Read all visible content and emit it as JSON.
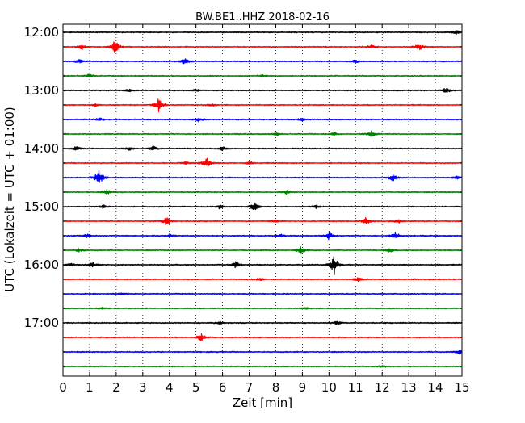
{
  "chart_data": {
    "type": "line",
    "title": "BW.BE1..HHZ 2018-02-16",
    "xlabel": "Zeit  [min]",
    "ylabel": "UTC (Lokalzeit = UTC + 01:00)",
    "xlim": [
      0,
      15
    ],
    "x_ticks": [
      0,
      1,
      2,
      3,
      4,
      5,
      6,
      7,
      8,
      9,
      10,
      11,
      12,
      13,
      14,
      15
    ],
    "x_tick_labels": [
      "0",
      "1",
      "2",
      "3",
      "4",
      "5",
      "6",
      "7",
      "8",
      "9",
      "10",
      "11",
      "12",
      "13",
      "14",
      "15"
    ],
    "grid": "vertical dotted lines at each minute",
    "y_tick_labels": [
      "12:00",
      "13:00",
      "14:00",
      "15:00",
      "16:00",
      "17:00"
    ],
    "trace_color_cycle": [
      "#000000",
      "#ff0000",
      "#0000ff",
      "#008000"
    ],
    "traces": [
      {
        "start": "12:00",
        "events": [
          [
            14.8,
            1.0
          ]
        ]
      },
      {
        "start": "12:15",
        "events": [
          [
            1.95,
            4.5
          ],
          [
            0.7,
            1.5
          ],
          [
            13.4,
            1.8
          ],
          [
            11.6,
            1.0
          ]
        ]
      },
      {
        "start": "12:30",
        "events": [
          [
            4.6,
            2.0
          ],
          [
            0.6,
            1.0
          ],
          [
            11.0,
            0.8
          ]
        ]
      },
      {
        "start": "12:45",
        "events": [
          [
            1.0,
            1.2
          ],
          [
            7.5,
            0.7
          ]
        ]
      },
      {
        "start": "13:00",
        "events": [
          [
            14.4,
            1.5
          ],
          [
            5.0,
            0.8
          ],
          [
            2.5,
            0.8
          ]
        ]
      },
      {
        "start": "13:15",
        "events": [
          [
            3.6,
            3.5
          ],
          [
            5.6,
            0.8
          ],
          [
            1.2,
            0.8
          ]
        ]
      },
      {
        "start": "13:30",
        "events": [
          [
            1.4,
            0.8
          ],
          [
            5.1,
            1.0
          ],
          [
            9.0,
            0.7
          ]
        ]
      },
      {
        "start": "13:45",
        "events": [
          [
            11.6,
            1.5
          ],
          [
            10.2,
            0.8
          ],
          [
            8.0,
            0.8
          ]
        ]
      },
      {
        "start": "14:00",
        "events": [
          [
            3.4,
            1.2
          ],
          [
            0.5,
            1.0
          ],
          [
            6.0,
            1.0
          ],
          [
            2.5,
            0.8
          ]
        ]
      },
      {
        "start": "14:15",
        "events": [
          [
            5.4,
            2.8
          ],
          [
            7.0,
            0.8
          ],
          [
            4.6,
            0.8
          ]
        ]
      },
      {
        "start": "14:30",
        "events": [
          [
            1.35,
            4.8
          ],
          [
            12.4,
            1.8
          ],
          [
            14.8,
            0.8
          ]
        ]
      },
      {
        "start": "14:45",
        "events": [
          [
            1.65,
            1.5
          ],
          [
            8.4,
            0.9
          ]
        ]
      },
      {
        "start": "15:00",
        "events": [
          [
            7.2,
            2.2
          ],
          [
            5.9,
            1.2
          ],
          [
            1.5,
            1.0
          ],
          [
            9.5,
            0.8
          ]
        ]
      },
      {
        "start": "15:15",
        "events": [
          [
            3.9,
            2.6
          ],
          [
            11.4,
            2.0
          ],
          [
            12.6,
            1.0
          ],
          [
            8.0,
            0.8
          ]
        ]
      },
      {
        "start": "15:30",
        "events": [
          [
            10.0,
            2.0
          ],
          [
            12.5,
            1.8
          ],
          [
            8.2,
            0.8
          ],
          [
            0.9,
            0.8
          ],
          [
            4.0,
            0.8
          ]
        ]
      },
      {
        "start": "15:45",
        "events": [
          [
            8.95,
            2.0
          ],
          [
            12.3,
            1.2
          ],
          [
            0.6,
            1.0
          ]
        ]
      },
      {
        "start": "16:00",
        "events": [
          [
            10.2,
            5.0
          ],
          [
            6.5,
            2.0
          ],
          [
            1.1,
            1.2
          ],
          [
            0.3,
            0.8
          ]
        ]
      },
      {
        "start": "16:15",
        "events": [
          [
            11.1,
            1.0
          ],
          [
            7.4,
            0.8
          ]
        ]
      },
      {
        "start": "16:30",
        "events": [
          [
            2.2,
            0.6
          ]
        ]
      },
      {
        "start": "16:45",
        "events": [
          [
            9.1,
            0.8
          ],
          [
            1.5,
            0.6
          ]
        ]
      },
      {
        "start": "17:00",
        "events": [
          [
            10.3,
            0.9
          ],
          [
            5.9,
            0.7
          ]
        ]
      },
      {
        "start": "17:15",
        "events": [
          [
            5.2,
            2.0
          ]
        ]
      },
      {
        "start": "17:30",
        "events": [
          [
            14.95,
            1.5
          ]
        ]
      },
      {
        "start": "17:45",
        "events": [
          [
            12.0,
            0.7
          ]
        ]
      }
    ]
  }
}
